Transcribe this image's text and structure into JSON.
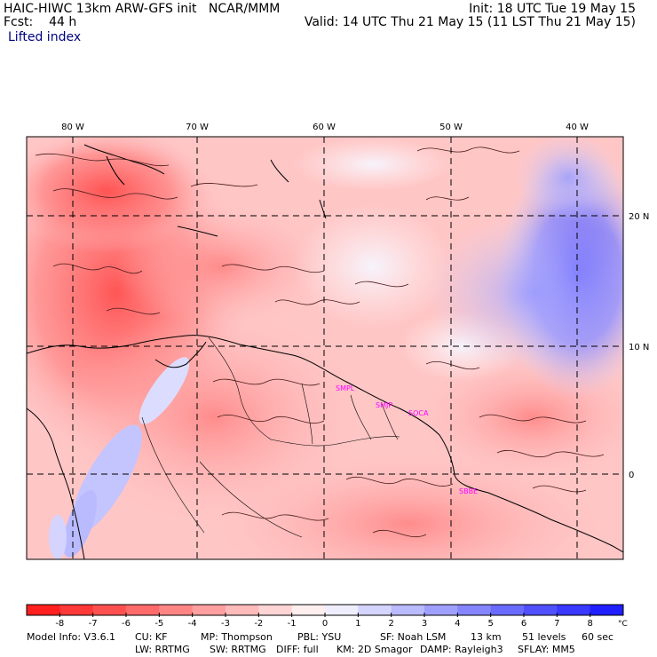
{
  "header": {
    "model_title": "HAIC-HIWC 13km ARW-GFS init",
    "org": "NCAR/MMM",
    "forecast_label": "Fcst:",
    "forecast_value": "44 h",
    "init": "Init: 18 UTC Tue 19 May 15",
    "valid": "Valid: 14 UTC Thu 21 May 15 (11 LST Thu 21 May 15)",
    "field": "Lifted index"
  },
  "map": {
    "lon_labels": [
      "80 W",
      "70 W",
      "60 W",
      "50 W",
      "40 W"
    ],
    "lat_labels": [
      "20 N",
      "10 N",
      "0"
    ],
    "stations": [
      "SMPL",
      "SMJP",
      "SOCA",
      "SBBE"
    ]
  },
  "colorbar": {
    "ticks": [
      "-8",
      "-7",
      "-6",
      "-5",
      "-4",
      "-3",
      "-2",
      "-1",
      "0",
      "1",
      "2",
      "3",
      "4",
      "5",
      "6",
      "7",
      "8"
    ],
    "unit": "°C",
    "colors": [
      "#ff1f1f",
      "#ff3838",
      "#ff5050",
      "#ff6a6a",
      "#ff8585",
      "#ff9f9f",
      "#ffbaba",
      "#ffd4d4",
      "#ffeeee",
      "#eeeeff",
      "#d4d4ff",
      "#babaff",
      "#9f9fff",
      "#8585ff",
      "#6a6aff",
      "#5050ff",
      "#3838ff",
      "#1f1fff"
    ]
  },
  "footer": {
    "row1": [
      "Model Info: V3.6.1",
      "CU: KF",
      "MP: Thompson",
      "PBL: YSU",
      "SF: Noah LSM",
      "13 km",
      "51 levels",
      "60 sec"
    ],
    "row2": [
      "LW: RRTMG",
      "SW: RRTMG",
      "DIFF: full",
      "KM: 2D Smagor",
      "DAMP: Rayleigh3",
      "SFLAY: MM5"
    ]
  }
}
